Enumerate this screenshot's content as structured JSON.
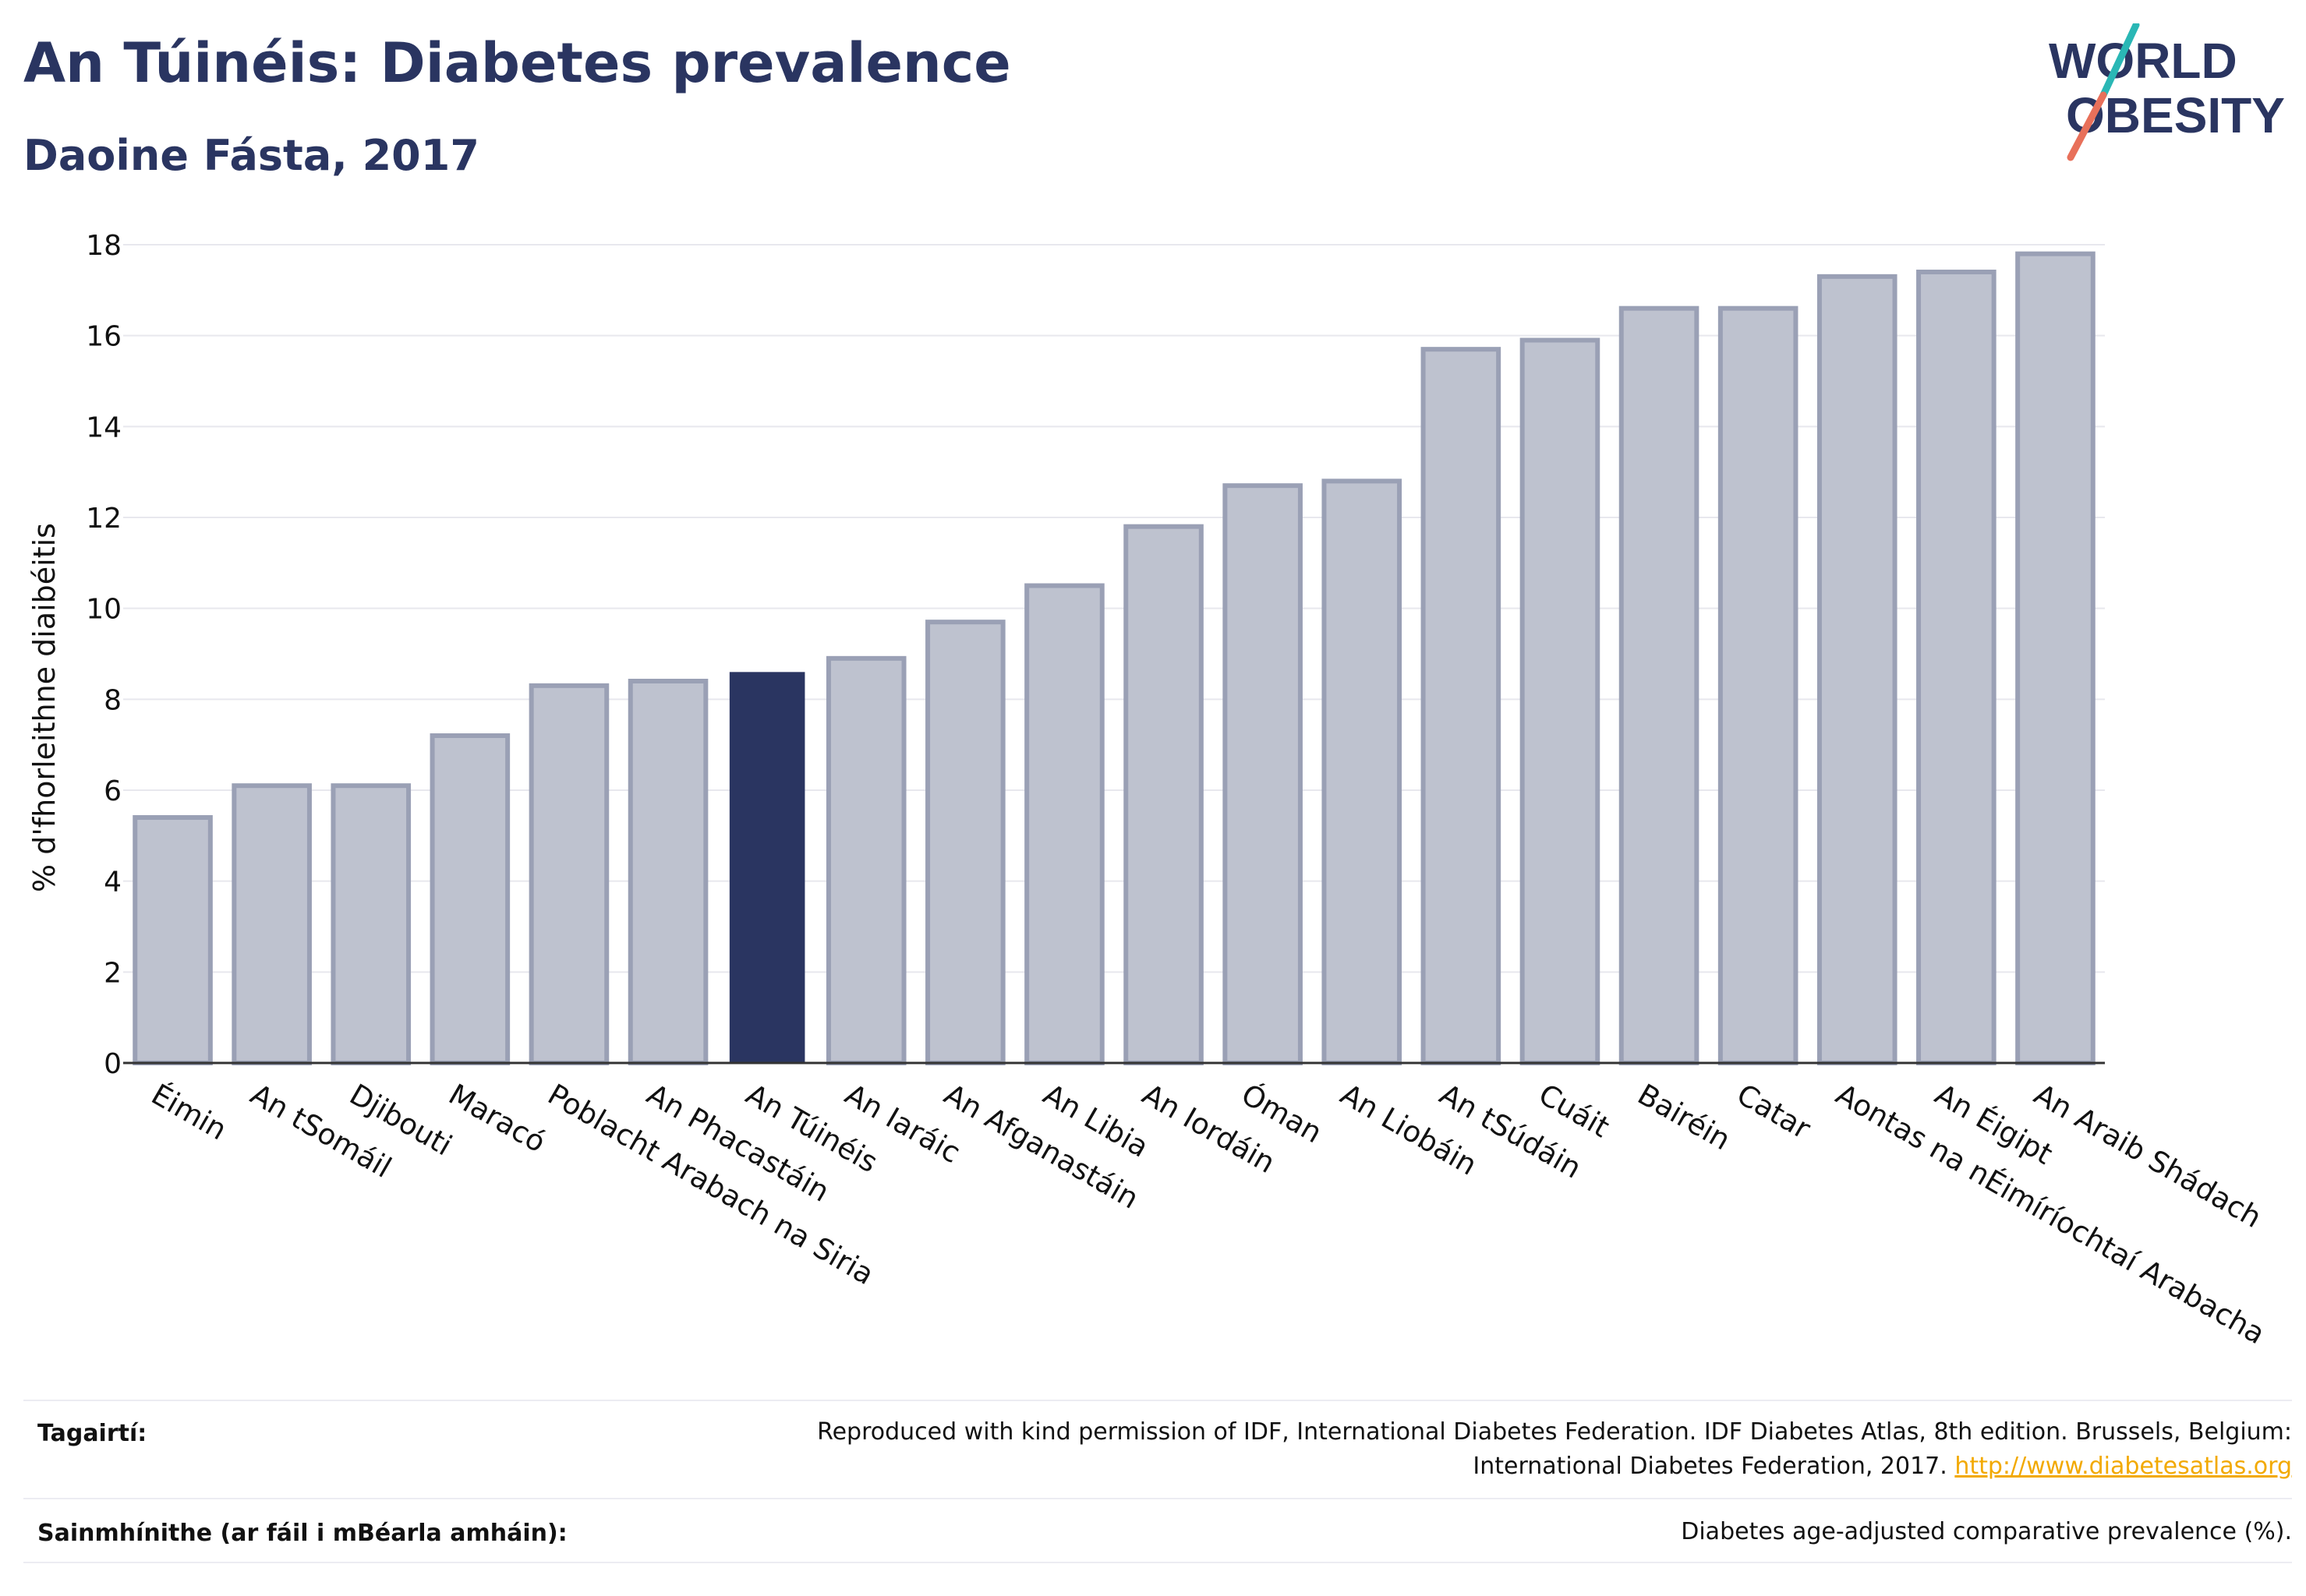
{
  "header": {
    "title": "An Túinéis: Diabetes prevalence",
    "subtitle": "Daoine Fásta, 2017"
  },
  "logo": {
    "line1": "WORLD",
    "line2": "OBESITY",
    "slash_top_color": "#2ab7b5",
    "slash_bottom_color": "#e8705a",
    "text_color": "#2a3561"
  },
  "chart_data": {
    "type": "bar",
    "ylabel": "% d'fhorleithne diaibéitis",
    "xlabel": "",
    "ylim": [
      0,
      18
    ],
    "yticks": [
      0,
      2,
      4,
      6,
      8,
      10,
      12,
      14,
      16,
      18
    ],
    "grid": true,
    "categories": [
      "Éimin",
      "An tSomáil",
      "Djibouti",
      "Maracó",
      "Poblacht Arabach na Siria",
      "An Phacastáin",
      "An Túinéis",
      "An Iaráic",
      "An Afganastáin",
      "An Libia",
      "An Iordáin",
      "Óman",
      "An Liobáin",
      "An tSúdáin",
      "Cuáit",
      "Bairéin",
      "Catar",
      "Aontas na nÉimíríochtaí Arabacha",
      "An Éigipt",
      "An Araib Shádach"
    ],
    "values": [
      5.4,
      6.1,
      6.1,
      7.2,
      8.3,
      8.4,
      8.6,
      8.9,
      9.7,
      10.5,
      11.8,
      12.7,
      12.8,
      15.7,
      15.9,
      16.6,
      16.6,
      17.3,
      17.4,
      17.8
    ],
    "highlight": "An Túinéis",
    "highlight_color": "#2a3561",
    "bar_color": "#bec2cf",
    "bar_border_color": "#9aa0b5"
  },
  "footer": {
    "references_label": "Tagairtí:",
    "references_line1": "Reproduced with kind permission of IDF, International Diabetes Federation. IDF Diabetes Atlas, 8th edition. Brussels, Belgium:",
    "references_line2": "International Diabetes Federation, 2017.",
    "references_link": "http://www.diabetesatlas.org",
    "definitions_label": "Sainmhínithe (ar fáil i mBéarla amháin):",
    "definitions_text": "Diabetes age-adjusted comparative prevalence (%)."
  }
}
